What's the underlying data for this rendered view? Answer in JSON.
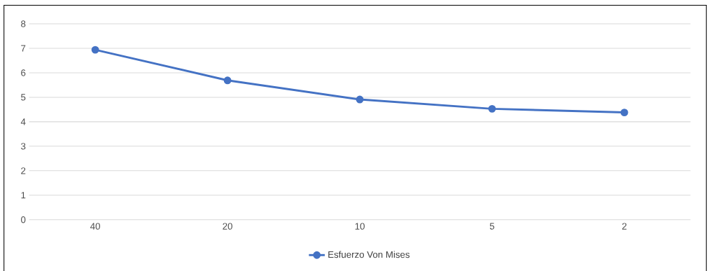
{
  "chart_data": {
    "type": "line",
    "categories": [
      "40",
      "20",
      "10",
      "5",
      "2"
    ],
    "series": [
      {
        "name": "Esfuerzo Von Mises",
        "color": "#4472c4",
        "values": [
          6.94,
          5.69,
          4.91,
          4.53,
          4.38
        ]
      }
    ],
    "ylim": [
      0,
      8
    ],
    "yticks": [
      0,
      1,
      2,
      3,
      4,
      5,
      6,
      7,
      8
    ],
    "grid": "y",
    "legend": "bottom",
    "marker": "circle",
    "line_style": "solid"
  }
}
